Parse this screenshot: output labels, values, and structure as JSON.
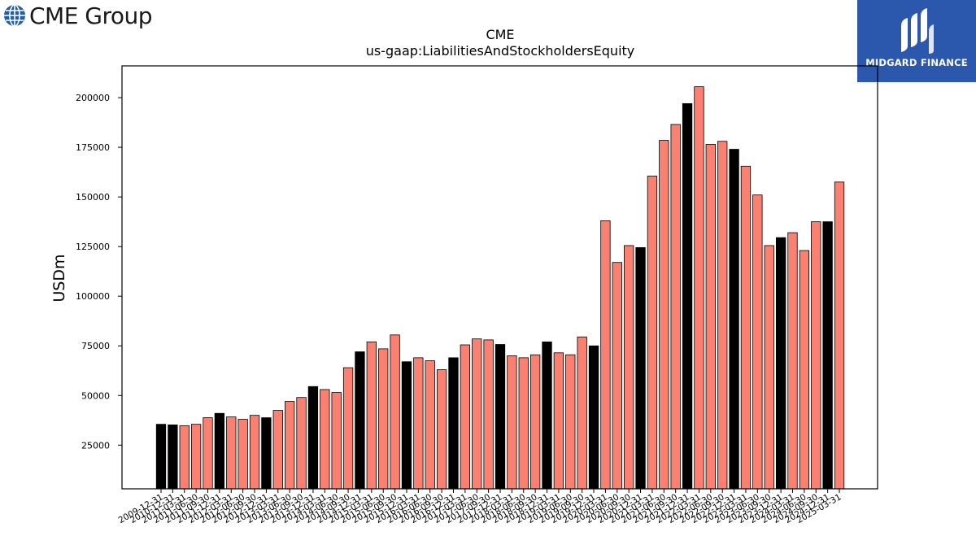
{
  "branding": {
    "left_logo_text": "CME Group",
    "right_logo_text": "MIDGARD FINANCE",
    "left_logo_icon": "globe-icon",
    "right_logo_icon": "midgard-mark-icon"
  },
  "chart_data": {
    "type": "bar",
    "title": "CME",
    "subtitle": "us-gaap:LiabilitiesAndStockholdersEquity",
    "xlabel": "",
    "ylabel": "USDm",
    "ylim": [
      3000,
      216000
    ],
    "yticks": [
      25000,
      50000,
      75000,
      100000,
      125000,
      150000,
      175000,
      200000
    ],
    "grid": false,
    "colors": {
      "annual": "#000000",
      "quarterly": "#fa8072",
      "edge": "#000000"
    },
    "categories": [
      "2009-12-31",
      "2010-12-31",
      "2011-03-31",
      "2011-06-30",
      "2011-09-30",
      "2011-12-31",
      "2012-03-31",
      "2012-06-30",
      "2012-09-30",
      "2012-12-31",
      "2013-03-31",
      "2013-06-30",
      "2013-09-30",
      "2013-12-31",
      "2014-03-31",
      "2014-06-30",
      "2014-09-30",
      "2014-12-31",
      "2015-03-31",
      "2015-06-30",
      "2015-09-30",
      "2015-12-31",
      "2016-03-31",
      "2016-06-30",
      "2016-09-30",
      "2016-12-31",
      "2017-03-31",
      "2017-06-30",
      "2017-09-30",
      "2017-12-31",
      "2018-03-31",
      "2018-06-30",
      "2018-09-30",
      "2018-12-31",
      "2019-03-31",
      "2019-06-30",
      "2019-09-30",
      "2019-12-31",
      "2020-03-31",
      "2020-06-30",
      "2020-09-30",
      "2020-12-31",
      "2021-03-31",
      "2021-06-30",
      "2021-09-30",
      "2021-12-31",
      "2022-03-31",
      "2022-06-30",
      "2022-09-30",
      "2022-12-31",
      "2023-03-31",
      "2023-06-30",
      "2023-09-30",
      "2023-12-31",
      "2024-03-31",
      "2024-06-30",
      "2024-09-30",
      "2024-12-31",
      "2025-03-31"
    ],
    "values": [
      35500,
      35200,
      34800,
      35500,
      38800,
      41000,
      39200,
      38000,
      40000,
      38800,
      42500,
      47000,
      49000,
      54500,
      53000,
      51500,
      64000,
      72000,
      77000,
      73500,
      80500,
      67000,
      69000,
      67500,
      63000,
      69000,
      75500,
      78500,
      78000,
      75700,
      70000,
      69000,
      70500,
      77000,
      71500,
      70500,
      79500,
      75000,
      138000,
      117000,
      125500,
      124500,
      160500,
      178500,
      186500,
      197000,
      205500,
      176500,
      178000,
      174000,
      165500,
      151000,
      125500,
      129500,
      132000,
      123000,
      137500,
      137500,
      157500
    ],
    "annual_flags": [
      1,
      1,
      0,
      0,
      0,
      1,
      0,
      0,
      0,
      1,
      0,
      0,
      0,
      1,
      0,
      0,
      0,
      1,
      0,
      0,
      0,
      1,
      0,
      0,
      0,
      1,
      0,
      0,
      0,
      1,
      0,
      0,
      0,
      1,
      0,
      0,
      0,
      1,
      0,
      0,
      0,
      1,
      0,
      0,
      0,
      1,
      0,
      0,
      0,
      1,
      0,
      0,
      0,
      1,
      0,
      0,
      0,
      1,
      0
    ]
  }
}
